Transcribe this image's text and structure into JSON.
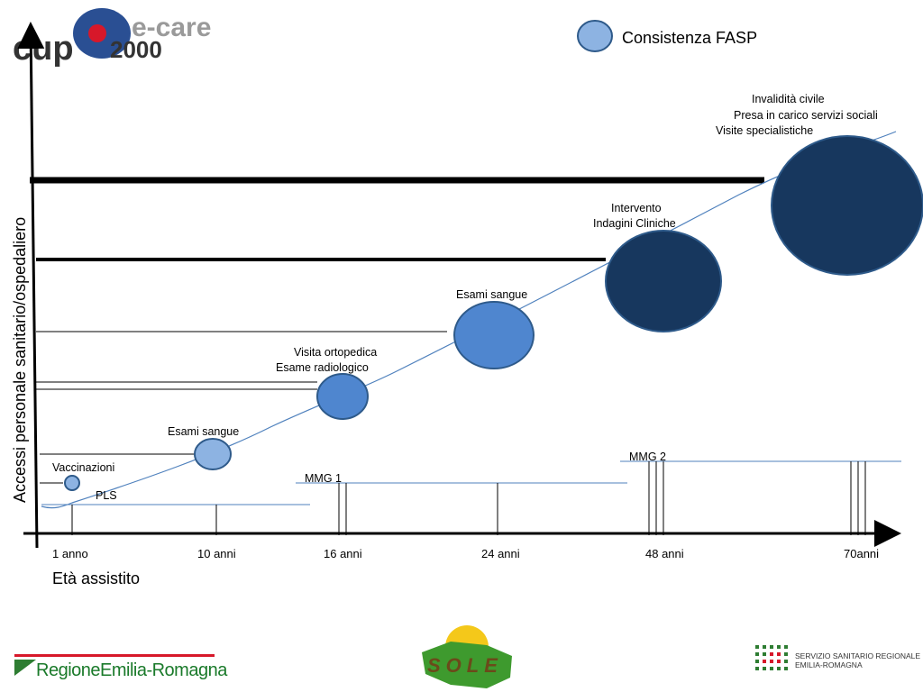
{
  "logo_top": {
    "text_left": "cup",
    "text_right_top": "e-care",
    "text_right_bottom": "2000"
  },
  "legend": {
    "label": "Consistenza FASP"
  },
  "y_axis": {
    "label": "Accessi personale sanitario/ospedaliero"
  },
  "x_axis": {
    "label": "Età assistito",
    "ticks": [
      "1 anno",
      "10 anni",
      "16 anni",
      "24 anni",
      "48 anni",
      "70anni"
    ]
  },
  "annotations": {
    "vaccinazioni": "Vaccinazioni",
    "pls": "PLS",
    "esami_sangue_1": "Esami sangue",
    "visita_ortopedica": "Visita ortopedica",
    "esame_radiologico": "Esame radiologico",
    "mmg1": "MMG 1",
    "esami_sangue_2": "Esami sangue",
    "intervento": "Intervento",
    "indagini_cliniche": "Indagini Cliniche",
    "mmg2": "MMG 2",
    "invalidita_civile": "Invalidità civile",
    "presa_in_carico": "Presa in carico servizi sociali",
    "visite_specialistiche": "Visite specialistiche"
  },
  "footer": {
    "regione": "RegioneEmilia-Romagna",
    "sole": "SOLE",
    "ssr_line1": "SERVIZIO SANITARIO REGIONALE",
    "ssr_line2": "EMILIA-ROMAGNA"
  },
  "colors": {
    "bubble_light": "#8DB3E2",
    "bubble_mid": "#4F86CF",
    "bubble_dark": "#17375E",
    "bubble_stroke": "#2E5A8A",
    "curve": "#4F81BD",
    "brand_red": "#D7182A",
    "brand_green": "#2E7D32"
  }
}
